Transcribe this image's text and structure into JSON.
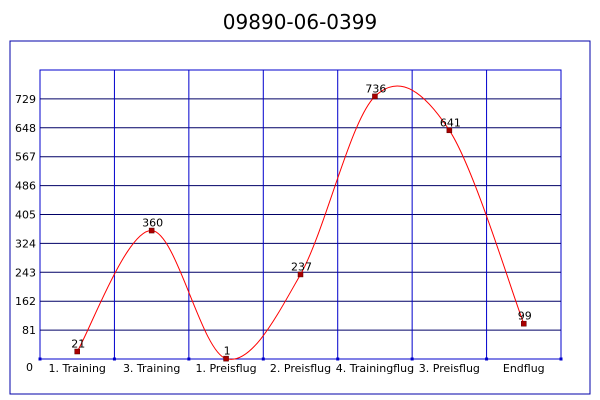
{
  "chart_data": {
    "type": "line",
    "title": "09890-06-0399",
    "categories": [
      "1. Training",
      "3. Training",
      "1. Preisflug",
      "2. Preisflug",
      "4. Trainingflug",
      "3. Preisflug",
      "Endflug"
    ],
    "series": [
      {
        "values": [
          21,
          360,
          1,
          237,
          736,
          641,
          99
        ]
      }
    ],
    "y_ticks": [
      0,
      81,
      162,
      243,
      324,
      405,
      486,
      567,
      648,
      729
    ],
    "ylim": [
      0,
      810
    ],
    "xlabel": "",
    "ylabel": "",
    "grid": true,
    "smooth": true,
    "colors": {
      "frame": "#0000aa",
      "grid": "#0000cc",
      "line": "#ff0000",
      "marker_fill": "#aa0000",
      "marker_stroke": "#550000"
    }
  }
}
